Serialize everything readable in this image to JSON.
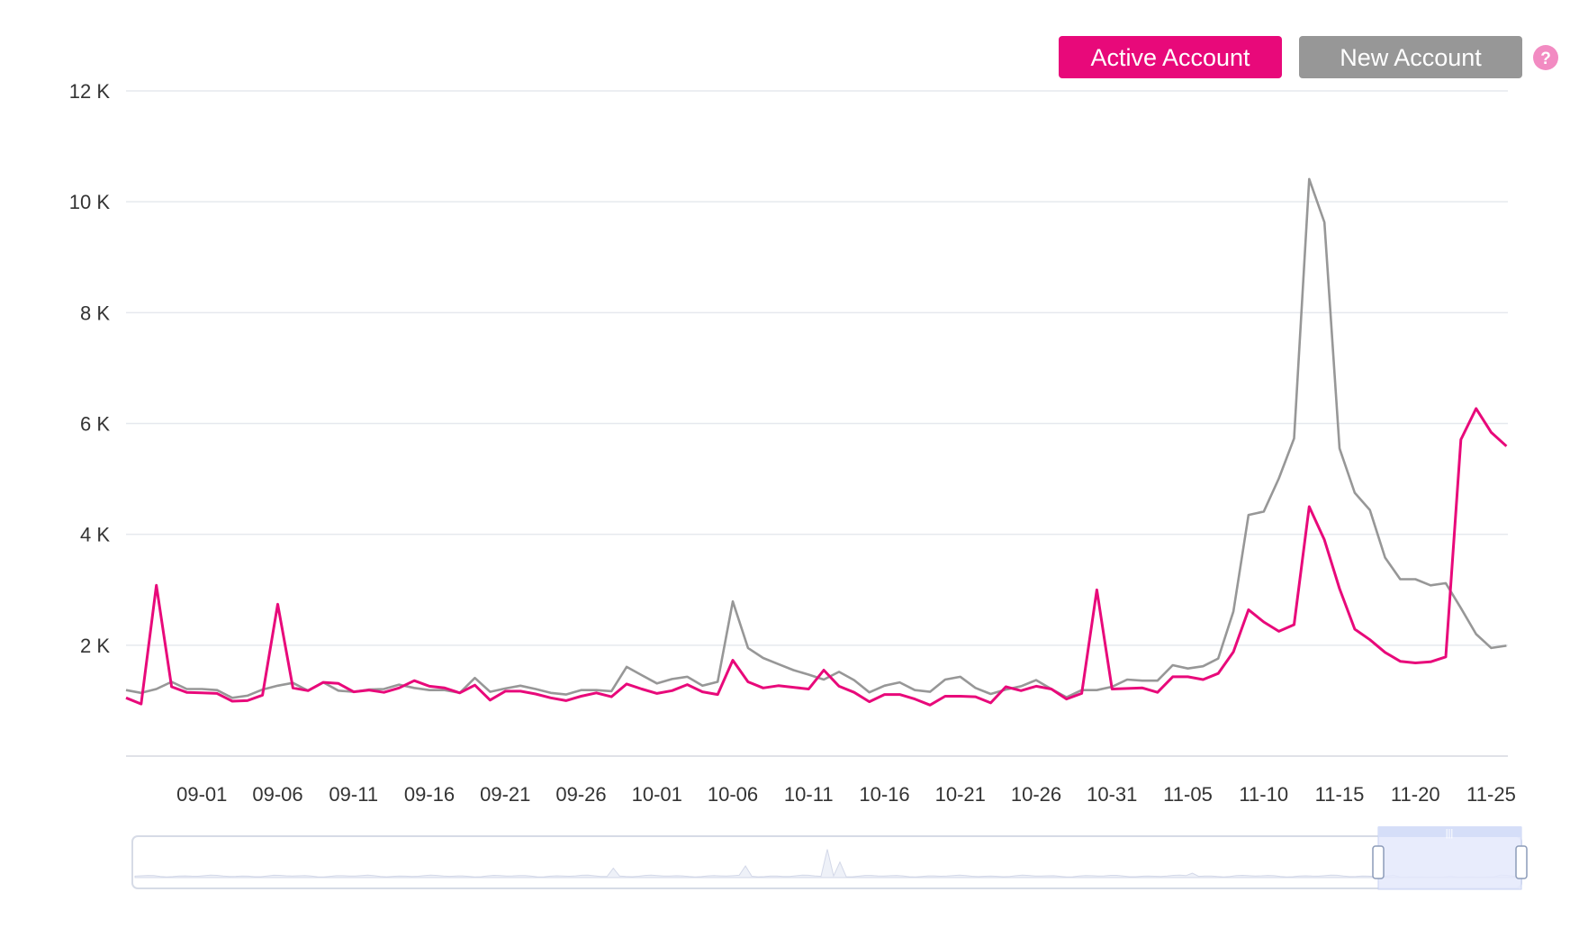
{
  "legend": {
    "active_label": "Active Account",
    "new_label": "New Account",
    "help_symbol": "?"
  },
  "colors": {
    "active": "#E8097A",
    "new": "#979797",
    "help": "#F28BC2",
    "grid": "#E6E9EE",
    "axis_text": "#333333",
    "slider_fill": "#E4E9FB",
    "slider_border": "#C7D2F2"
  },
  "chart_data": {
    "type": "line",
    "title": "",
    "xlabel": "",
    "ylabel": "",
    "ylim": [
      0,
      12000
    ],
    "y_ticks": [
      "12 K",
      "10 K",
      "8 K",
      "6 K",
      "4 K",
      "2 K"
    ],
    "y_tick_values": [
      12000,
      10000,
      8000,
      6000,
      4000,
      2000
    ],
    "x_tick_labels": [
      "09-01",
      "09-06",
      "09-11",
      "09-16",
      "09-21",
      "09-26",
      "10-01",
      "10-06",
      "10-11",
      "10-16",
      "10-21",
      "10-26",
      "10-31",
      "11-05",
      "11-10",
      "11-15",
      "11-20",
      "11-25"
    ],
    "x_start": "08-27",
    "x_end": "11-26",
    "grid": true,
    "legend_position": "top-right",
    "series": [
      {
        "name": "Active Account",
        "values": [
          1050,
          940,
          3080,
          1250,
          1150,
          1140,
          1130,
          990,
          1000,
          1100,
          2740,
          1230,
          1180,
          1330,
          1310,
          1160,
          1190,
          1150,
          1230,
          1360,
          1260,
          1230,
          1140,
          1280,
          1010,
          1170,
          1170,
          1120,
          1050,
          1000,
          1080,
          1140,
          1070,
          1300,
          1210,
          1130,
          1180,
          1290,
          1160,
          1110,
          1730,
          1340,
          1230,
          1270,
          1240,
          1210,
          1550,
          1260,
          1150,
          980,
          1110,
          1110,
          1030,
          920,
          1080,
          1080,
          1070,
          960,
          1250,
          1180,
          1260,
          1210,
          1030,
          1130,
          3000,
          1210,
          1220,
          1230,
          1150,
          1430,
          1430,
          1380,
          1490,
          1880,
          2640,
          2420,
          2250,
          2370,
          4500,
          3900,
          3020,
          2290,
          2100,
          1870,
          1710,
          1680,
          1700,
          1790,
          5710,
          6270,
          5840,
          5590
        ]
      },
      {
        "name": "New Account",
        "values": [
          1190,
          1140,
          1210,
          1340,
          1210,
          1210,
          1190,
          1050,
          1090,
          1200,
          1270,
          1320,
          1180,
          1330,
          1180,
          1160,
          1200,
          1210,
          1290,
          1230,
          1190,
          1190,
          1140,
          1410,
          1160,
          1220,
          1270,
          1210,
          1140,
          1110,
          1190,
          1190,
          1170,
          1610,
          1460,
          1310,
          1390,
          1430,
          1270,
          1340,
          2790,
          1950,
          1770,
          1660,
          1550,
          1470,
          1380,
          1520,
          1370,
          1150,
          1270,
          1330,
          1190,
          1160,
          1380,
          1430,
          1230,
          1120,
          1200,
          1260,
          1370,
          1210,
          1060,
          1190,
          1190,
          1250,
          1380,
          1360,
          1360,
          1640,
          1580,
          1620,
          1760,
          2610,
          4350,
          4410,
          5010,
          5730,
          10410,
          9630,
          5550,
          4750,
          4440,
          3580,
          3190,
          3190,
          3080,
          3120,
          2670,
          2200,
          1950,
          1990
        ]
      }
    ]
  }
}
